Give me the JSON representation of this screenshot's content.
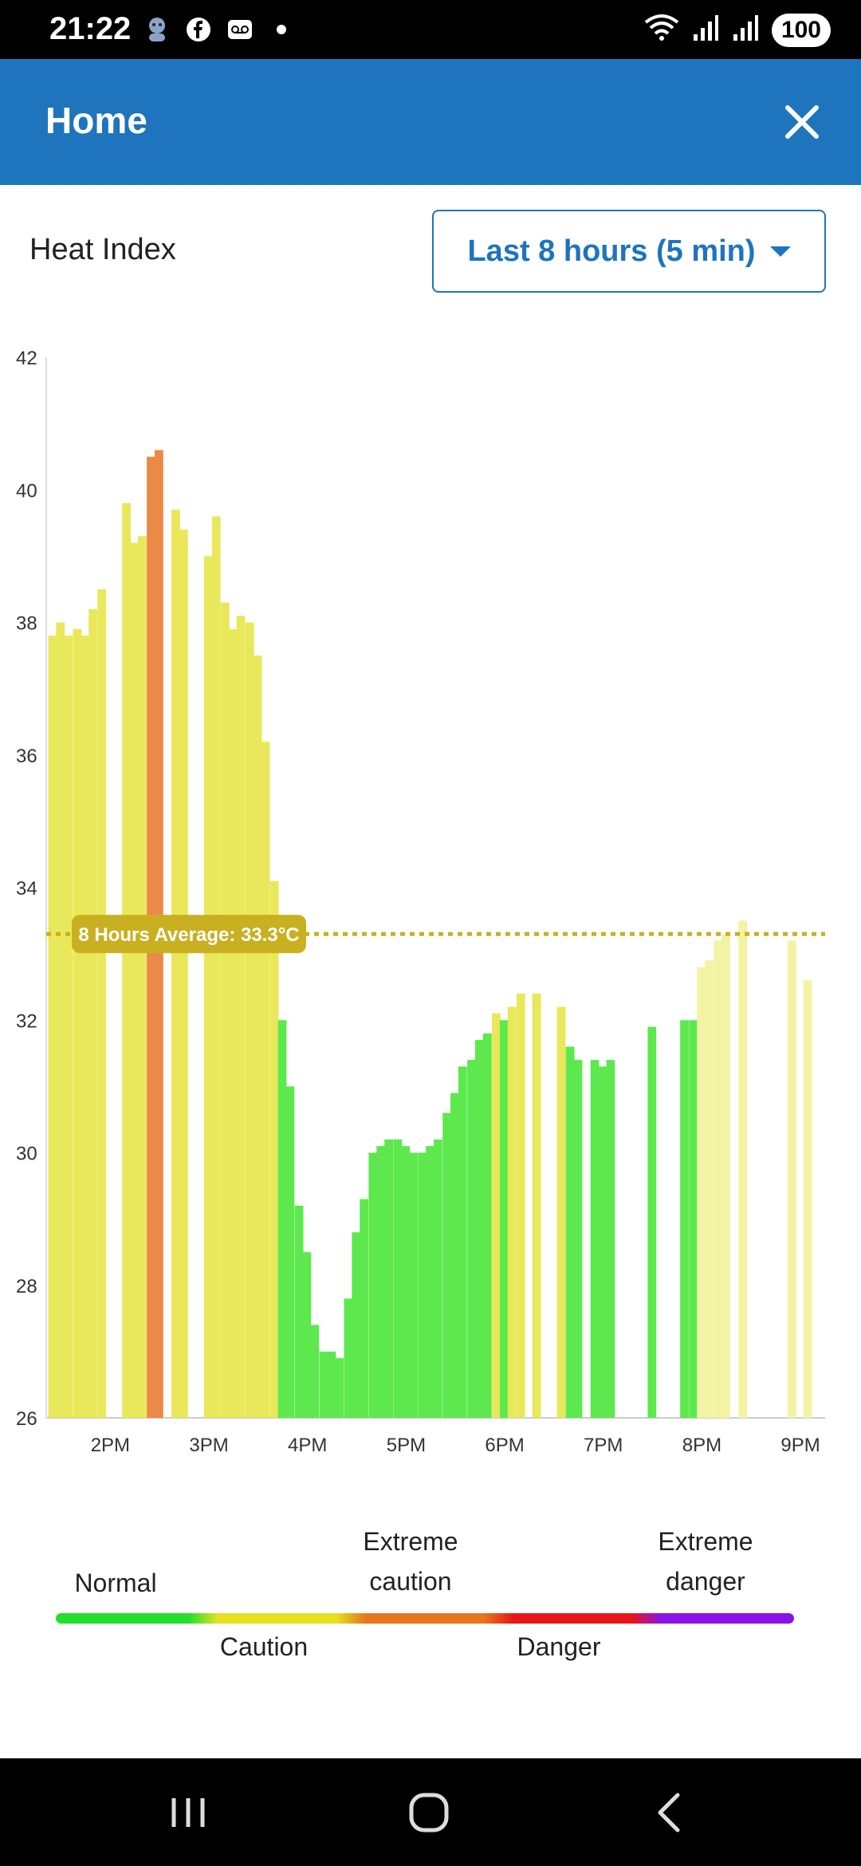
{
  "status_bar": {
    "time": "21:22",
    "battery": "100",
    "left_icons": [
      "avatar-icon",
      "facebook-icon",
      "voicemail-icon",
      "dot-icon"
    ],
    "right_icons": [
      "wifi-icon",
      "signal-icon",
      "signal-icon"
    ]
  },
  "app_bar": {
    "title": "Home",
    "close_icon": "close-icon",
    "background": "#1e74bd"
  },
  "controls": {
    "metric_label": "Heat Index",
    "range_selected": "Last 8 hours (5 min)"
  },
  "chart_data": {
    "type": "bar",
    "title": "",
    "xlabel": "",
    "ylabel": "",
    "ylim": [
      26,
      42
    ],
    "y_ticks": [
      "26",
      "28",
      "30",
      "32",
      "34",
      "36",
      "38",
      "40",
      "42"
    ],
    "x_tick_labels": [
      "2PM",
      "3PM",
      "4PM",
      "5PM",
      "6PM",
      "7PM",
      "8PM",
      "9PM"
    ],
    "x_ticks_hours": [
      14,
      15,
      16,
      17,
      18,
      19,
      20,
      21
    ],
    "x_range_hours": [
      13.35,
      21.25
    ],
    "bar_width_hours": 0.0833,
    "average_value": 33.3,
    "average_label": "8 Hours Average: 33.3°C",
    "colors": {
      "normal": "#5de84e",
      "caution": "#e8e85a",
      "caution_light": "#f3f3a4",
      "extreme_caution": "#ea8a46",
      "average_line": "#c9b020"
    },
    "bars": [
      {
        "t": 13.37,
        "v": 37.8,
        "c": "caution"
      },
      {
        "t": 13.45,
        "v": 38.0,
        "c": "caution"
      },
      {
        "t": 13.53,
        "v": 37.8,
        "c": "caution"
      },
      {
        "t": 13.62,
        "v": 37.9,
        "c": "caution"
      },
      {
        "t": 13.7,
        "v": 37.8,
        "c": "caution"
      },
      {
        "t": 13.78,
        "v": 38.2,
        "c": "caution"
      },
      {
        "t": 13.87,
        "v": 38.5,
        "c": "caution"
      },
      {
        "t": 14.12,
        "v": 39.8,
        "c": "caution"
      },
      {
        "t": 14.2,
        "v": 39.2,
        "c": "caution"
      },
      {
        "t": 14.28,
        "v": 39.3,
        "c": "caution"
      },
      {
        "t": 14.37,
        "v": 40.5,
        "c": "extreme_caution"
      },
      {
        "t": 14.45,
        "v": 40.6,
        "c": "extreme_caution"
      },
      {
        "t": 14.62,
        "v": 39.7,
        "c": "caution"
      },
      {
        "t": 14.7,
        "v": 39.4,
        "c": "caution"
      },
      {
        "t": 14.95,
        "v": 39.0,
        "c": "caution"
      },
      {
        "t": 15.03,
        "v": 39.6,
        "c": "caution"
      },
      {
        "t": 15.12,
        "v": 38.3,
        "c": "caution"
      },
      {
        "t": 15.2,
        "v": 37.9,
        "c": "caution"
      },
      {
        "t": 15.28,
        "v": 38.1,
        "c": "caution"
      },
      {
        "t": 15.37,
        "v": 38.0,
        "c": "caution"
      },
      {
        "t": 15.45,
        "v": 37.5,
        "c": "caution"
      },
      {
        "t": 15.53,
        "v": 36.2,
        "c": "caution"
      },
      {
        "t": 15.62,
        "v": 34.1,
        "c": "caution"
      },
      {
        "t": 15.7,
        "v": 32.0,
        "c": "normal"
      },
      {
        "t": 15.78,
        "v": 31.0,
        "c": "normal"
      },
      {
        "t": 15.87,
        "v": 29.2,
        "c": "normal"
      },
      {
        "t": 15.95,
        "v": 28.5,
        "c": "normal"
      },
      {
        "t": 16.03,
        "v": 27.4,
        "c": "normal"
      },
      {
        "t": 16.12,
        "v": 27.0,
        "c": "normal"
      },
      {
        "t": 16.2,
        "v": 27.0,
        "c": "normal"
      },
      {
        "t": 16.28,
        "v": 26.9,
        "c": "normal"
      },
      {
        "t": 16.37,
        "v": 27.8,
        "c": "normal"
      },
      {
        "t": 16.45,
        "v": 28.8,
        "c": "normal"
      },
      {
        "t": 16.53,
        "v": 29.3,
        "c": "normal"
      },
      {
        "t": 16.62,
        "v": 30.0,
        "c": "normal"
      },
      {
        "t": 16.7,
        "v": 30.1,
        "c": "normal"
      },
      {
        "t": 16.78,
        "v": 30.2,
        "c": "normal"
      },
      {
        "t": 16.87,
        "v": 30.2,
        "c": "normal"
      },
      {
        "t": 16.95,
        "v": 30.1,
        "c": "normal"
      },
      {
        "t": 17.03,
        "v": 30.0,
        "c": "normal"
      },
      {
        "t": 17.12,
        "v": 30.0,
        "c": "normal"
      },
      {
        "t": 17.2,
        "v": 30.1,
        "c": "normal"
      },
      {
        "t": 17.28,
        "v": 30.2,
        "c": "normal"
      },
      {
        "t": 17.37,
        "v": 30.6,
        "c": "normal"
      },
      {
        "t": 17.45,
        "v": 30.9,
        "c": "normal"
      },
      {
        "t": 17.53,
        "v": 31.3,
        "c": "normal"
      },
      {
        "t": 17.62,
        "v": 31.4,
        "c": "normal"
      },
      {
        "t": 17.7,
        "v": 31.7,
        "c": "normal"
      },
      {
        "t": 17.78,
        "v": 31.8,
        "c": "normal"
      },
      {
        "t": 17.87,
        "v": 32.1,
        "c": "caution"
      },
      {
        "t": 17.95,
        "v": 32.0,
        "c": "normal"
      },
      {
        "t": 18.03,
        "v": 32.2,
        "c": "caution"
      },
      {
        "t": 18.12,
        "v": 32.4,
        "c": "caution"
      },
      {
        "t": 18.28,
        "v": 32.4,
        "c": "caution"
      },
      {
        "t": 18.53,
        "v": 32.2,
        "c": "caution"
      },
      {
        "t": 18.62,
        "v": 31.6,
        "c": "normal"
      },
      {
        "t": 18.7,
        "v": 31.4,
        "c": "normal"
      },
      {
        "t": 18.87,
        "v": 31.4,
        "c": "normal"
      },
      {
        "t": 18.95,
        "v": 31.3,
        "c": "normal"
      },
      {
        "t": 19.03,
        "v": 31.4,
        "c": "normal"
      },
      {
        "t": 19.45,
        "v": 31.9,
        "c": "normal"
      },
      {
        "t": 19.78,
        "v": 32.0,
        "c": "normal"
      },
      {
        "t": 19.87,
        "v": 32.0,
        "c": "normal"
      },
      {
        "t": 19.95,
        "v": 32.8,
        "c": "caution_light"
      },
      {
        "t": 20.03,
        "v": 32.9,
        "c": "caution_light"
      },
      {
        "t": 20.12,
        "v": 33.2,
        "c": "caution_light"
      },
      {
        "t": 20.2,
        "v": 33.3,
        "c": "caution_light"
      },
      {
        "t": 20.37,
        "v": 33.5,
        "c": "caution_light"
      },
      {
        "t": 20.87,
        "v": 33.2,
        "c": "caution_light"
      },
      {
        "t": 21.03,
        "v": 32.6,
        "c": "caution_light"
      }
    ]
  },
  "legend": {
    "labels": {
      "normal": "Normal",
      "caution": "Caution",
      "extreme_caution_1": "Extreme",
      "extreme_caution_2": "caution",
      "danger": "Danger",
      "extreme_danger_1": "Extreme",
      "extreme_danger_2": "danger"
    },
    "gradient_colors": [
      "#22e02a",
      "#e6e020",
      "#e8761a",
      "#e81616",
      "#8a12e6"
    ]
  },
  "nav_bar": {
    "icons": [
      "recent-apps-icon",
      "home-icon",
      "back-icon"
    ]
  }
}
